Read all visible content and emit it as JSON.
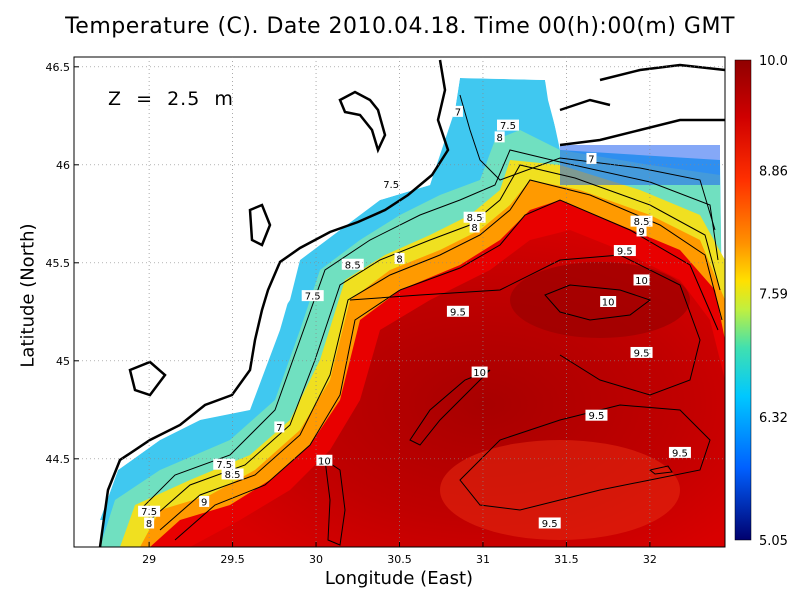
{
  "title": "Temperature (C). Date 2010.04.18. Time 00(h):00(m) GMT",
  "depth_label": "Z  =  2.5  m",
  "xlabel": "Longitude (East)",
  "ylabel": "Latitude (North)",
  "chart_data": {
    "type": "heatmap",
    "variable": "Temperature",
    "units": "C",
    "x_axis": {
      "label": "Longitude (East)",
      "range": [
        28.55,
        32.45
      ],
      "ticks": [
        29,
        29.5,
        30,
        30.5,
        31,
        31.5,
        32
      ]
    },
    "y_axis": {
      "label": "Latitude (North)",
      "range": [
        44.05,
        46.55
      ],
      "ticks": [
        44.5,
        45,
        45.5,
        46,
        46.5
      ]
    },
    "colorbar": {
      "min": 5.05,
      "max": 10.0,
      "ticks": [
        10.0,
        8.86,
        7.59,
        6.32,
        5.05
      ],
      "tick_labels": [
        "10.0",
        "8.86",
        "7.59",
        "6.32",
        "5.05"
      ],
      "colors": [
        "#00006e",
        "#0050ff",
        "#00c8ff",
        "#30e0c0",
        "#b0f060",
        "#ffff00",
        "#ffa000",
        "#ff4000",
        "#e00000",
        "#900000"
      ]
    },
    "grid": "dotted",
    "contour_levels": [
      7,
      7.5,
      8,
      8.5,
      9,
      9.5,
      10
    ],
    "contour_labels": [
      {
        "text": "7",
        "lon": 30.85,
        "lat": 46.27
      },
      {
        "text": "7.5",
        "lon": 31.15,
        "lat": 46.2
      },
      {
        "text": "8",
        "lon": 31.1,
        "lat": 46.14
      },
      {
        "text": "7",
        "lon": 31.65,
        "lat": 46.03
      },
      {
        "text": "7.5",
        "lon": 30.45,
        "lat": 45.9
      },
      {
        "text": "8.5",
        "lon": 30.95,
        "lat": 45.73
      },
      {
        "text": "8",
        "lon": 30.95,
        "lat": 45.68
      },
      {
        "text": "8.5",
        "lon": 31.95,
        "lat": 45.71
      },
      {
        "text": "9",
        "lon": 31.95,
        "lat": 45.66
      },
      {
        "text": "9.5",
        "lon": 31.85,
        "lat": 45.56
      },
      {
        "text": "8",
        "lon": 30.5,
        "lat": 45.52
      },
      {
        "text": "8.5",
        "lon": 30.22,
        "lat": 45.49
      },
      {
        "text": "10",
        "lon": 31.95,
        "lat": 45.41
      },
      {
        "text": "10",
        "lon": 31.75,
        "lat": 45.3
      },
      {
        "text": "7.5",
        "lon": 29.98,
        "lat": 45.33
      },
      {
        "text": "9.5",
        "lon": 30.85,
        "lat": 45.25
      },
      {
        "text": "9.5",
        "lon": 31.95,
        "lat": 45.04
      },
      {
        "text": "10",
        "lon": 30.98,
        "lat": 44.94
      },
      {
        "text": "9.5",
        "lon": 31.68,
        "lat": 44.72
      },
      {
        "text": "7",
        "lon": 29.78,
        "lat": 44.66
      },
      {
        "text": "9.5",
        "lon": 32.18,
        "lat": 44.53
      },
      {
        "text": "10",
        "lon": 30.05,
        "lat": 44.49
      },
      {
        "text": "7.5",
        "lon": 29.45,
        "lat": 44.47
      },
      {
        "text": "8.5",
        "lon": 29.5,
        "lat": 44.42
      },
      {
        "text": "9",
        "lon": 29.33,
        "lat": 44.28
      },
      {
        "text": "7.5",
        "lon": 29.0,
        "lat": 44.23
      },
      {
        "text": "8",
        "lon": 29.0,
        "lat": 44.17
      },
      {
        "text": "9.5",
        "lon": 31.4,
        "lat": 44.17
      }
    ]
  }
}
